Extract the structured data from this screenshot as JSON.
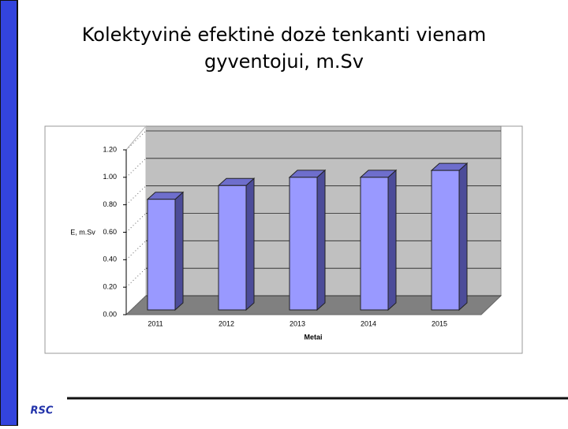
{
  "title_lines": [
    "Kolektyvinė efektinė dozė tenkanti vienam",
    "gyventojui, m.Sv"
  ],
  "logo": "RSC",
  "chart_data": {
    "type": "bar3d",
    "categories": [
      "2011",
      "2012",
      "2013",
      "2014",
      "2015"
    ],
    "values": [
      0.84,
      0.94,
      1.0,
      1.0,
      1.05
    ],
    "color": "#9999ff",
    "x_label": "Metai",
    "y_label": "E, m.Sv",
    "ylim": [
      0,
      1.2
    ],
    "yticks": [
      {
        "value": 0,
        "label": "0.00"
      },
      {
        "value": 0.2,
        "label": "0.20"
      },
      {
        "value": 0.4,
        "label": "0.40"
      },
      {
        "value": 0.6,
        "label": "0.60"
      },
      {
        "value": 0.8,
        "label": "0.80"
      },
      {
        "value": 1.0,
        "label": "1.00"
      },
      {
        "value": 1.2,
        "label": "1.20"
      }
    ],
    "grid": true
  }
}
